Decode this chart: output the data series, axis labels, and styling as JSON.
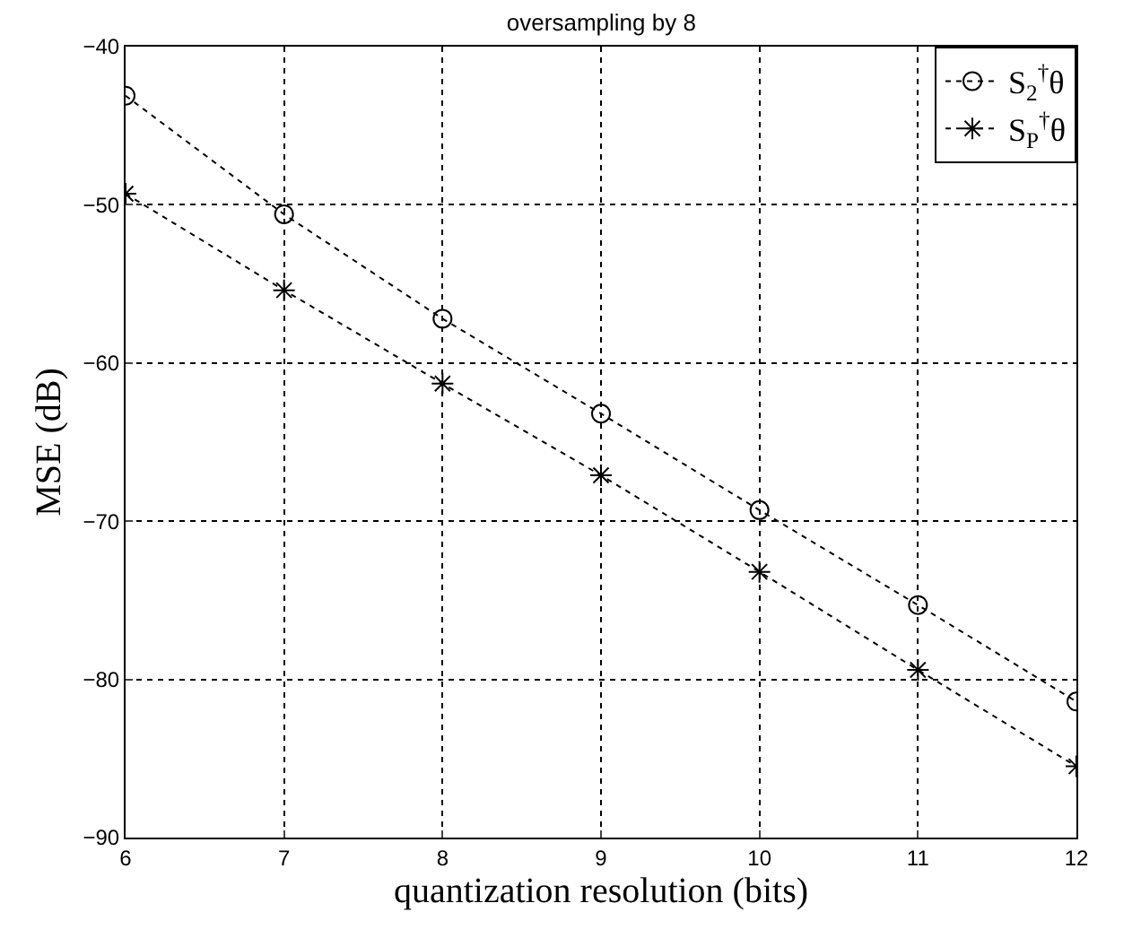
{
  "chart_data": {
    "type": "line",
    "title": "oversampling by 8",
    "xlabel": "quantization resolution (bits)",
    "ylabel": "MSE (dB)",
    "x": [
      6,
      7,
      8,
      9,
      10,
      11,
      12
    ],
    "series": [
      {
        "name": "S$_{2}$$^{†}$θ",
        "color": "#000000",
        "marker": "circle",
        "values": [
          -43.1,
          -50.6,
          -57.2,
          -63.2,
          -69.3,
          -75.3,
          -81.4
        ]
      },
      {
        "name": "S$_{P}$$^{†}$θ",
        "color": "#000000",
        "marker": "cross",
        "values": [
          -49.3,
          -55.4,
          -61.3,
          -67.1,
          -73.2,
          -79.4,
          -85.5
        ]
      }
    ],
    "xlim": [
      6,
      12
    ],
    "xticks": [
      6,
      7,
      8,
      9,
      10,
      11,
      12
    ],
    "ylim": [
      -90,
      -40
    ],
    "yticks": [
      -90,
      -80,
      -70,
      -60,
      -50,
      -40
    ],
    "grid": true,
    "legend": "top right",
    "line_style": "dotted"
  }
}
